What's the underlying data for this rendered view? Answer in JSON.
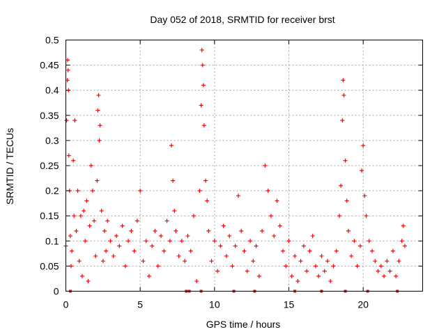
{
  "chart_data": {
    "type": "scatter",
    "title": "Day 052 of 2018, SRMTID for receiver brst",
    "xlabel": "GPS time / hours",
    "ylabel": "SRMTID / TECUs",
    "xlim": [
      0,
      24
    ],
    "ylim": [
      0,
      0.5
    ],
    "xticks": [
      0,
      5,
      10,
      15,
      20
    ],
    "xtick_labels": [
      "0",
      "5",
      "10",
      "15",
      "20"
    ],
    "yticks": [
      0,
      0.05,
      0.1,
      0.15,
      0.2,
      0.25,
      0.3,
      0.35,
      0.4,
      0.45,
      0.5
    ],
    "ytick_labels": [
      "0",
      "0.05",
      "0.1",
      "0.15",
      "0.2",
      "0.25",
      "0.3",
      "0.35",
      "0.4",
      "0.45",
      "0.5"
    ],
    "grid": true,
    "marker": "+",
    "marker_color": "#ff0000",
    "series": [
      {
        "name": "SRMTID",
        "points": [
          [
            0.0,
            0.09
          ],
          [
            0.05,
            0.34
          ],
          [
            0.1,
            0.42
          ],
          [
            0.12,
            0.46
          ],
          [
            0.15,
            0.44
          ],
          [
            0.18,
            0.4
          ],
          [
            0.2,
            0.27
          ],
          [
            0.25,
            0.2
          ],
          [
            0.3,
            0.11
          ],
          [
            0.35,
            0.05
          ],
          [
            0.4,
            0.08
          ],
          [
            0.5,
            0.26
          ],
          [
            0.55,
            0.15
          ],
          [
            0.6,
            0.34
          ],
          [
            0.7,
            0.12
          ],
          [
            0.8,
            0.2
          ],
          [
            0.9,
            0.06
          ],
          [
            1.0,
            0.15
          ],
          [
            1.1,
            0.03
          ],
          [
            1.2,
            0.16
          ],
          [
            1.3,
            0.1
          ],
          [
            1.4,
            0.18
          ],
          [
            1.5,
            0.02
          ],
          [
            1.6,
            0.13
          ],
          [
            1.7,
            0.25
          ],
          [
            1.8,
            0.2
          ],
          [
            1.9,
            0.14
          ],
          [
            2.0,
            0.07
          ],
          [
            2.1,
            0.22
          ],
          [
            2.15,
            0.36
          ],
          [
            2.2,
            0.39
          ],
          [
            2.25,
            0.3
          ],
          [
            2.3,
            0.33
          ],
          [
            2.4,
            0.16
          ],
          [
            2.5,
            0.06
          ],
          [
            2.6,
            0.12
          ],
          [
            2.7,
            0.08
          ],
          [
            2.8,
            0.14
          ],
          [
            3.0,
            0.1
          ],
          [
            3.2,
            0.07
          ],
          [
            3.4,
            0.11
          ],
          [
            3.6,
            0.09
          ],
          [
            3.8,
            0.13
          ],
          [
            4.0,
            0.05
          ],
          [
            4.2,
            0.1
          ],
          [
            4.4,
            0.12
          ],
          [
            4.6,
            0.08
          ],
          [
            4.8,
            0.14
          ],
          [
            5.0,
            0.2
          ],
          [
            5.2,
            0.06
          ],
          [
            5.4,
            0.1
          ],
          [
            5.6,
            0.03
          ],
          [
            5.8,
            0.09
          ],
          [
            6.0,
            0.12
          ],
          [
            6.2,
            0.05
          ],
          [
            6.4,
            0.11
          ],
          [
            6.6,
            0.08
          ],
          [
            6.8,
            0.14
          ],
          [
            7.0,
            0.1
          ],
          [
            7.1,
            0.29
          ],
          [
            7.2,
            0.22
          ],
          [
            7.3,
            0.16
          ],
          [
            7.4,
            0.12
          ],
          [
            7.6,
            0.07
          ],
          [
            7.8,
            0.1
          ],
          [
            8.0,
            0.06
          ],
          [
            8.2,
            0.11
          ],
          [
            8.4,
            0.08
          ],
          [
            8.6,
            0.15
          ],
          [
            8.8,
            0.02
          ],
          [
            9.0,
            0.2
          ],
          [
            9.1,
            0.37
          ],
          [
            9.15,
            0.48
          ],
          [
            9.2,
            0.45
          ],
          [
            9.25,
            0.41
          ],
          [
            9.3,
            0.33
          ],
          [
            9.4,
            0.22
          ],
          [
            9.5,
            0.18
          ],
          [
            9.6,
            0.12
          ],
          [
            9.8,
            0.06
          ],
          [
            10.0,
            0.1
          ],
          [
            10.2,
            0.04
          ],
          [
            10.4,
            0.09
          ],
          [
            10.6,
            0.13
          ],
          [
            10.8,
            0.07
          ],
          [
            11.0,
            0.11
          ],
          [
            11.2,
            0.05
          ],
          [
            11.4,
            0.09
          ],
          [
            11.6,
            0.19
          ],
          [
            11.8,
            0.12
          ],
          [
            12.0,
            0.08
          ],
          [
            12.2,
            0.04
          ],
          [
            12.4,
            0.1
          ],
          [
            12.6,
            0.06
          ],
          [
            12.8,
            0.09
          ],
          [
            13.0,
            0.03
          ],
          [
            13.2,
            0.12
          ],
          [
            13.4,
            0.25
          ],
          [
            13.6,
            0.2
          ],
          [
            13.8,
            0.15
          ],
          [
            14.0,
            0.11
          ],
          [
            14.2,
            0.18
          ],
          [
            14.4,
            0.13
          ],
          [
            14.6,
            0.08
          ],
          [
            14.8,
            0.05
          ],
          [
            15.0,
            0.1
          ],
          [
            15.2,
            0.03
          ],
          [
            15.4,
            0.07
          ],
          [
            15.6,
            0.02
          ],
          [
            15.8,
            0.06
          ],
          [
            16.0,
            0.09
          ],
          [
            16.2,
            0.04
          ],
          [
            16.4,
            0.08
          ],
          [
            16.6,
            0.11
          ],
          [
            16.8,
            0.05
          ],
          [
            17.0,
            0.03
          ],
          [
            17.2,
            0.07
          ],
          [
            17.4,
            0.04
          ],
          [
            17.6,
            0.06
          ],
          [
            17.8,
            0.02
          ],
          [
            18.0,
            0.05
          ],
          [
            18.2,
            0.08
          ],
          [
            18.4,
            0.15
          ],
          [
            18.5,
            0.21
          ],
          [
            18.6,
            0.34
          ],
          [
            18.65,
            0.42
          ],
          [
            18.7,
            0.39
          ],
          [
            18.8,
            0.26
          ],
          [
            18.9,
            0.18
          ],
          [
            19.0,
            0.12
          ],
          [
            19.2,
            0.07
          ],
          [
            19.4,
            0.1
          ],
          [
            19.6,
            0.05
          ],
          [
            19.8,
            0.09
          ],
          [
            19.9,
            0.24
          ],
          [
            20.0,
            0.29
          ],
          [
            20.1,
            0.19
          ],
          [
            20.2,
            0.15
          ],
          [
            20.4,
            0.1
          ],
          [
            20.6,
            0.08
          ],
          [
            20.8,
            0.06
          ],
          [
            21.0,
            0.04
          ],
          [
            21.2,
            0.05
          ],
          [
            21.4,
            0.03
          ],
          [
            21.6,
            0.06
          ],
          [
            21.8,
            0.04
          ],
          [
            22.0,
            0.08
          ],
          [
            22.2,
            0.03
          ],
          [
            22.4,
            0.06
          ],
          [
            22.6,
            0.1
          ],
          [
            22.7,
            0.13
          ],
          [
            22.8,
            0.09
          ]
        ]
      }
    ],
    "zero_markers_x": [
      0.3,
      8.1,
      8.3,
      9.1,
      11.3,
      12.7,
      15.4,
      17.2,
      18.8,
      20.3,
      22.3
    ]
  }
}
